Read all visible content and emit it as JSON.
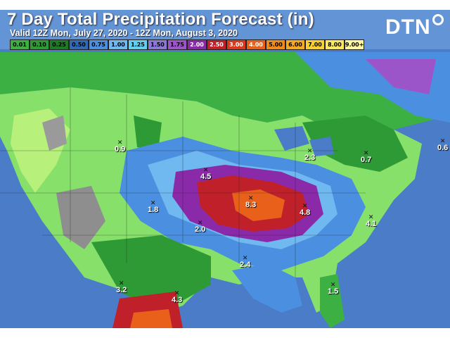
{
  "title": "7 Day Total Precipitation Forecast (in)",
  "subtitle": "Valid 12Z Mon, July 27, 2020 - 12Z Mon, August 3, 2020",
  "logo": "DTN",
  "legend": [
    {
      "label": "0.01",
      "color": "#3cb043"
    },
    {
      "label": "0.10",
      "color": "#2e9a35"
    },
    {
      "label": "0.25",
      "color": "#1d7a27"
    },
    {
      "label": "0.50",
      "color": "#2f6bb8"
    },
    {
      "label": "0.75",
      "color": "#4a8fe0"
    },
    {
      "label": "1.00",
      "color": "#6fb8f0"
    },
    {
      "label": "1.25",
      "color": "#5fd0f0"
    },
    {
      "label": "1.50",
      "color": "#8a78d8"
    },
    {
      "label": "1.75",
      "color": "#9b55c8"
    },
    {
      "label": "2.00",
      "color": "#8a2aa8"
    },
    {
      "label": "2.50",
      "color": "#c0202a"
    },
    {
      "label": "3.00",
      "color": "#d83a1e"
    },
    {
      "label": "4.00",
      "color": "#e8601a"
    },
    {
      "label": "5.00",
      "color": "#f08a1a"
    },
    {
      "label": "6.00",
      "color": "#f5a820"
    },
    {
      "label": "7.00",
      "color": "#f8d030"
    },
    {
      "label": "8.00",
      "color": "#fae860"
    },
    {
      "label": "9.00+",
      "color": "#fffaa0"
    }
  ],
  "markers": [
    {
      "value": "0.9"
    },
    {
      "value": "2.3"
    },
    {
      "value": "0.7"
    },
    {
      "value": "0.6"
    },
    {
      "value": "4.5"
    },
    {
      "value": "1.8"
    },
    {
      "value": "8.3"
    },
    {
      "value": "4.8"
    },
    {
      "value": "2.0"
    },
    {
      "value": "4.1"
    },
    {
      "value": "2.4"
    },
    {
      "value": "3.2"
    },
    {
      "value": "4.3"
    },
    {
      "value": "1.5"
    }
  ]
}
